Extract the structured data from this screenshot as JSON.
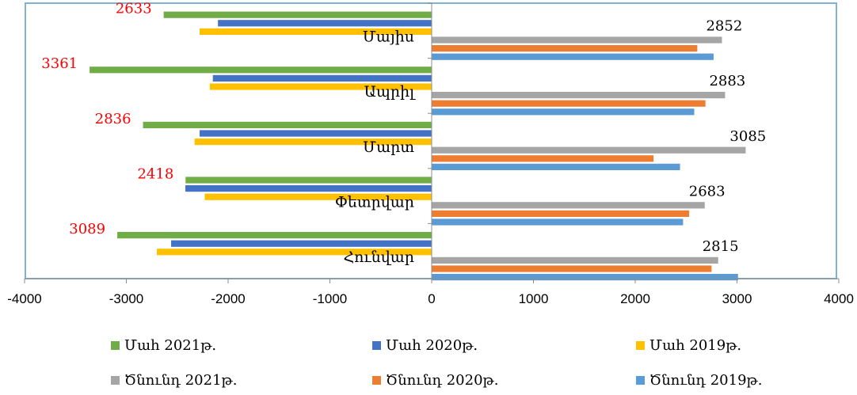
{
  "chart_data": {
    "type": "bar",
    "orientation": "horizontal",
    "title": "",
    "xlim": [
      -4000,
      4000
    ],
    "xticks": [
      -4000,
      -3000,
      -2000,
      -1000,
      0,
      1000,
      2000,
      3000,
      4000
    ],
    "categories": [
      "Հունվար",
      "Փետրվար",
      "Մարտ",
      "Ապրիլ",
      "Մայիս"
    ],
    "series": [
      {
        "name": "Ծնունդ 2019թ.",
        "color": "#5b9bd5",
        "values": [
          3010,
          2470,
          2440,
          2580,
          2770
        ]
      },
      {
        "name": "Ծնունդ 2020թ.",
        "color": "#ed7d31",
        "values": [
          2750,
          2530,
          2180,
          2690,
          2610
        ]
      },
      {
        "name": "Ծնունդ 2021թ.",
        "color": "#a5a5a5",
        "values": [
          2815,
          2683,
          3085,
          2883,
          2852
        ]
      },
      {
        "name": "Մահ 2019թ.",
        "color": "#ffc000",
        "values": [
          -2700,
          -2230,
          -2330,
          -2180,
          -2280
        ]
      },
      {
        "name": "Մահ 2020թ.",
        "color": "#4472c4",
        "values": [
          -2560,
          -2420,
          -2280,
          -2150,
          -2100
        ]
      },
      {
        "name": "Մահ 2021թ.",
        "color": "#70ad47",
        "values": [
          -3089,
          -2418,
          -2836,
          -3361,
          -2633
        ]
      }
    ],
    "data_labels": {
      "deaths_2021": [
        "3089",
        "2418",
        "2836",
        "3361",
        "2633"
      ],
      "births_2021": [
        "2815",
        "2683",
        "3085",
        "2883",
        "2852"
      ]
    },
    "grid": false,
    "legend_position": "bottom",
    "legend_order": [
      "Մահ 2021թ.",
      "Մահ 2020թ.",
      "Մահ 2019թ.",
      "Ծնունդ 2021թ.",
      "Ծնունդ 2020թ.",
      "Ծնունդ 2019թ."
    ]
  }
}
